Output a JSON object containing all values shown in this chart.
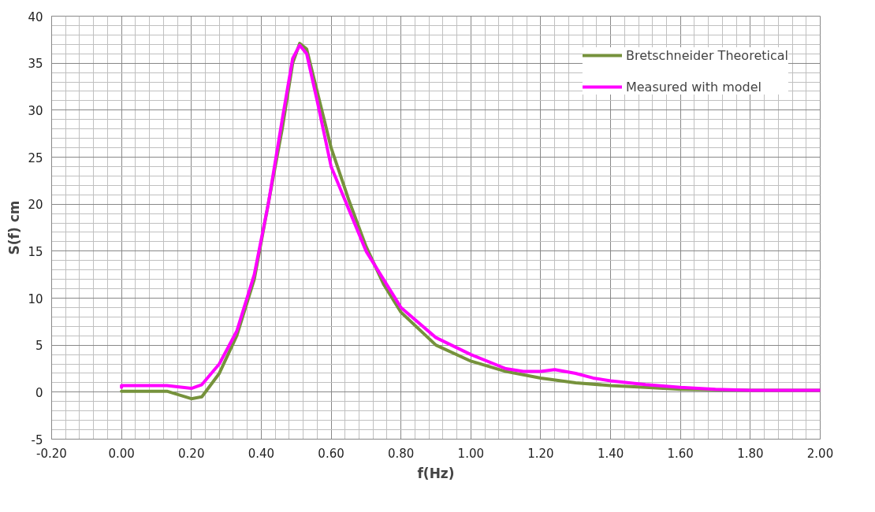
{
  "chart_data": {
    "type": "line",
    "xlabel": "f(Hz)",
    "ylabel": "S(f) cm",
    "xlim": [
      -0.2,
      2.0
    ],
    "ylim": [
      -5,
      40
    ],
    "xticks": [
      {
        "value": -0.2,
        "label": "-0.20"
      },
      {
        "value": 0,
        "label": "0.00"
      },
      {
        "value": 0.2,
        "label": "0.20"
      },
      {
        "value": 0.4,
        "label": "0.40"
      },
      {
        "value": 0.6,
        "label": "0.60"
      },
      {
        "value": 0.8,
        "label": "0.80"
      },
      {
        "value": 1.0,
        "label": "1.00"
      },
      {
        "value": 1.2,
        "label": "1.20"
      },
      {
        "value": 1.4,
        "label": "1.40"
      },
      {
        "value": 1.6,
        "label": "1.60"
      },
      {
        "value": 1.8,
        "label": "1.80"
      },
      {
        "value": 2.0,
        "label": "2.00"
      }
    ],
    "yticks": [
      -5,
      0,
      5,
      10,
      15,
      20,
      25,
      30,
      35,
      40
    ],
    "grid": true,
    "legend": "top right",
    "marker": "none",
    "line_style": "solid",
    "series": [
      {
        "name": "Bretschneider Theoretical",
        "color": "#76923c",
        "x": [
          0,
          0.13,
          0.2,
          0.23,
          0.28,
          0.33,
          0.38,
          0.42,
          0.46,
          0.49,
          0.51,
          0.53,
          0.56,
          0.6,
          0.65,
          0.7,
          0.75,
          0.8,
          0.9,
          1.0,
          1.1,
          1.2,
          1.3,
          1.4,
          1.5,
          1.6,
          1.8,
          2.0
        ],
        "values": [
          0.1,
          0.1,
          -0.7,
          -0.5,
          2,
          6,
          12,
          20,
          28,
          35,
          37.1,
          36.5,
          32,
          26,
          20.5,
          15.5,
          11.5,
          8.5,
          5,
          3.3,
          2.2,
          1.5,
          1.0,
          0.7,
          0.5,
          0.3,
          0.2,
          0.2
        ]
      },
      {
        "name": "Measured with model",
        "color": "#ff00ff",
        "x": [
          0,
          0,
          0.13,
          0.2,
          0.23,
          0.28,
          0.33,
          0.38,
          0.42,
          0.46,
          0.49,
          0.51,
          0.53,
          0.56,
          0.6,
          0.65,
          0.7,
          0.8,
          0.9,
          1.0,
          1.1,
          1.15,
          1.2,
          1.24,
          1.3,
          1.35,
          1.4,
          1.5,
          1.6,
          1.7,
          1.8,
          2.0
        ],
        "values": [
          0.5,
          0.7,
          0.7,
          0.4,
          0.8,
          3,
          6.5,
          12.5,
          20,
          29,
          35.5,
          36.9,
          36,
          31,
          24,
          19.5,
          15,
          9,
          5.8,
          4,
          2.5,
          2.2,
          2.2,
          2.4,
          2,
          1.5,
          1.2,
          0.8,
          0.5,
          0.3,
          0.2,
          0.2
        ]
      }
    ]
  }
}
